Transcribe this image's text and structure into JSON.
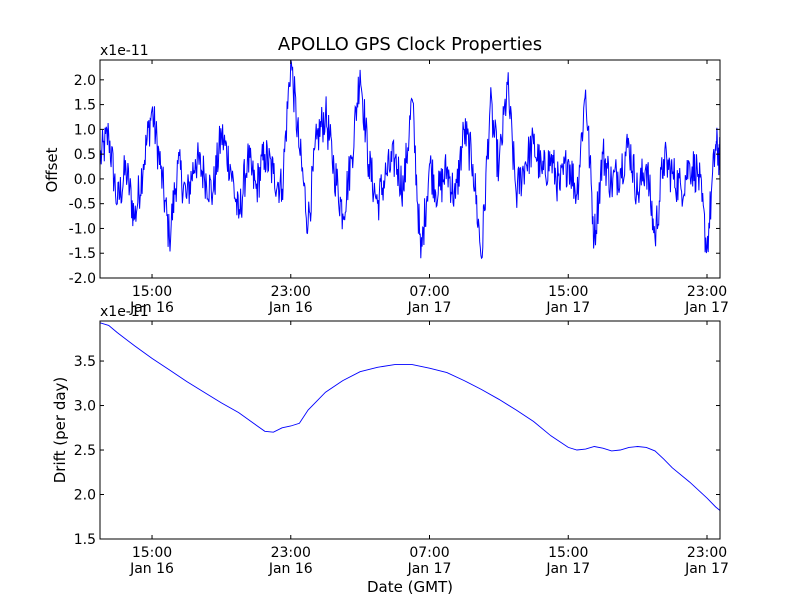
{
  "chart_data": [
    {
      "type": "line",
      "title": "APOLLO GPS Clock Properties",
      "xlabel": "",
      "ylabel": "Offset",
      "y_multiplier": "x1e-11",
      "ylim": [
        -2.0,
        2.4
      ],
      "xlim": [
        "2014-01-16T12:00",
        "2014-01-17T23:45"
      ],
      "yticks": [
        "-2.0",
        "-1.5",
        "-1.0",
        "-0.5",
        "0.0",
        "0.5",
        "1.0",
        "1.5",
        "2.0"
      ],
      "yticks_values": [
        -2.0,
        -1.5,
        -1.0,
        -0.5,
        0.0,
        0.5,
        1.0,
        1.5,
        2.0
      ],
      "xticks": [
        {
          "time": "15:00",
          "date": "Jan 16",
          "t": "2014-01-16T15:00"
        },
        {
          "time": "23:00",
          "date": "Jan 16",
          "t": "2014-01-16T23:00"
        },
        {
          "time": "07:00",
          "date": "Jan 17",
          "t": "2014-01-17T07:00"
        },
        {
          "time": "15:00",
          "date": "Jan 17",
          "t": "2014-01-17T15:00"
        },
        {
          "time": "23:00",
          "date": "Jan 17",
          "t": "2014-01-17T23:00"
        }
      ],
      "color": "#0000ff",
      "grid": false,
      "series": [
        {
          "name": "",
          "points": [
            [
              "2014-01-16T12:00",
              0.4
            ],
            [
              "2014-01-16T12:30",
              0.9
            ],
            [
              "2014-01-16T13:00",
              -0.5
            ],
            [
              "2014-01-16T13:30",
              0.2
            ],
            [
              "2014-01-16T14:00",
              -0.8
            ],
            [
              "2014-01-16T14:30",
              0.3
            ],
            [
              "2014-01-16T15:00",
              1.4
            ],
            [
              "2014-01-16T15:30",
              0.2
            ],
            [
              "2014-01-16T16:00",
              -1.2
            ],
            [
              "2014-01-16T16:30",
              0.3
            ],
            [
              "2014-01-16T17:00",
              -0.4
            ],
            [
              "2014-01-16T17:30",
              0.4
            ],
            [
              "2014-01-16T18:00",
              0.1
            ],
            [
              "2014-01-16T18:30",
              -0.3
            ],
            [
              "2014-01-16T19:00",
              0.9
            ],
            [
              "2014-01-16T19:30",
              0.3
            ],
            [
              "2014-01-16T20:00",
              -0.8
            ],
            [
              "2014-01-16T20:30",
              0.4
            ],
            [
              "2014-01-16T21:00",
              -0.2
            ],
            [
              "2014-01-16T21:30",
              0.5
            ],
            [
              "2014-01-16T22:00",
              0.1
            ],
            [
              "2014-01-16T22:30",
              -0.2
            ],
            [
              "2014-01-16T23:00",
              2.4
            ],
            [
              "2014-01-16T23:30",
              0.6
            ],
            [
              "2014-01-17T00:00",
              -0.9
            ],
            [
              "2014-01-17T00:30",
              0.8
            ],
            [
              "2014-01-17T01:00",
              1.3
            ],
            [
              "2014-01-17T01:30",
              0.2
            ],
            [
              "2014-01-17T02:00",
              -0.7
            ],
            [
              "2014-01-17T02:30",
              0.4
            ],
            [
              "2014-01-17T03:00",
              2.2
            ],
            [
              "2014-01-17T03:30",
              0.3
            ],
            [
              "2014-01-17T04:00",
              -0.5
            ],
            [
              "2014-01-17T04:30",
              0.1
            ],
            [
              "2014-01-17T05:00",
              0.4
            ],
            [
              "2014-01-17T05:30",
              -0.2
            ],
            [
              "2014-01-17T06:00",
              1.6
            ],
            [
              "2014-01-17T06:30",
              -1.6
            ],
            [
              "2014-01-17T07:00",
              0.3
            ],
            [
              "2014-01-17T07:30",
              -0.3
            ],
            [
              "2014-01-17T08:00",
              0.2
            ],
            [
              "2014-01-17T08:30",
              -0.4
            ],
            [
              "2014-01-17T09:00",
              1.0
            ],
            [
              "2014-01-17T09:30",
              0.3
            ],
            [
              "2014-01-17T10:00",
              -1.6
            ],
            [
              "2014-01-17T10:30",
              1.5
            ],
            [
              "2014-01-17T11:00",
              0.2
            ],
            [
              "2014-01-17T11:30",
              1.9
            ],
            [
              "2014-01-17T12:00",
              -0.3
            ],
            [
              "2014-01-17T12:30",
              0.3
            ],
            [
              "2014-01-17T13:00",
              0.7
            ],
            [
              "2014-01-17T13:30",
              0.1
            ],
            [
              "2014-01-17T14:00",
              0.4
            ],
            [
              "2014-01-17T14:30",
              -0.2
            ],
            [
              "2014-01-17T15:00",
              0.4
            ],
            [
              "2014-01-17T15:30",
              -0.3
            ],
            [
              "2014-01-17T16:00",
              1.8
            ],
            [
              "2014-01-17T16:30",
              -1.2
            ],
            [
              "2014-01-17T17:00",
              0.5
            ],
            [
              "2014-01-17T17:30",
              -0.1
            ],
            [
              "2014-01-17T18:00",
              0.2
            ],
            [
              "2014-01-17T18:30",
              0.7
            ],
            [
              "2014-01-17T19:00",
              -0.3
            ],
            [
              "2014-01-17T19:30",
              0.3
            ],
            [
              "2014-01-17T20:00",
              -1.2
            ],
            [
              "2014-01-17T20:30",
              0.4
            ],
            [
              "2014-01-17T21:00",
              0.1
            ],
            [
              "2014-01-17T21:30",
              -0.2
            ],
            [
              "2014-01-17T22:00",
              0.3
            ],
            [
              "2014-01-17T22:30",
              0.1
            ],
            [
              "2014-01-17T23:00",
              -1.4
            ],
            [
              "2014-01-17T23:30",
              0.7
            ],
            [
              "2014-01-17T23:45",
              0.4
            ]
          ]
        }
      ]
    },
    {
      "type": "line",
      "title": "",
      "xlabel": "Date (GMT)",
      "ylabel": "Drift (per day)",
      "y_multiplier": "x1e-11",
      "ylim": [
        1.5,
        3.95
      ],
      "xlim": [
        "2014-01-16T12:00",
        "2014-01-17T23:45"
      ],
      "yticks": [
        "1.5",
        "2.0",
        "2.5",
        "3.0",
        "3.5"
      ],
      "yticks_values": [
        1.5,
        2.0,
        2.5,
        3.0,
        3.5
      ],
      "xticks": [
        {
          "time": "15:00",
          "date": "Jan 16",
          "t": "2014-01-16T15:00"
        },
        {
          "time": "23:00",
          "date": "Jan 16",
          "t": "2014-01-16T23:00"
        },
        {
          "time": "07:00",
          "date": "Jan 17",
          "t": "2014-01-17T07:00"
        },
        {
          "time": "15:00",
          "date": "Jan 17",
          "t": "2014-01-17T15:00"
        },
        {
          "time": "23:00",
          "date": "Jan 17",
          "t": "2014-01-17T23:00"
        }
      ],
      "color": "#0000ff",
      "grid": false,
      "series": [
        {
          "name": "",
          "points": [
            [
              "2014-01-16T12:00",
              3.93
            ],
            [
              "2014-01-16T12:30",
              3.9
            ],
            [
              "2014-01-16T13:00",
              3.82
            ],
            [
              "2014-01-16T14:00",
              3.67
            ],
            [
              "2014-01-16T15:00",
              3.53
            ],
            [
              "2014-01-16T16:00",
              3.4
            ],
            [
              "2014-01-16T17:00",
              3.27
            ],
            [
              "2014-01-16T18:00",
              3.15
            ],
            [
              "2014-01-16T19:00",
              3.03
            ],
            [
              "2014-01-16T20:00",
              2.92
            ],
            [
              "2014-01-16T21:00",
              2.78
            ],
            [
              "2014-01-16T21:30",
              2.71
            ],
            [
              "2014-01-16T22:00",
              2.7
            ],
            [
              "2014-01-16T22:30",
              2.75
            ],
            [
              "2014-01-16T23:00",
              2.77
            ],
            [
              "2014-01-16T23:30",
              2.8
            ],
            [
              "2014-01-17T00:00",
              2.95
            ],
            [
              "2014-01-17T01:00",
              3.15
            ],
            [
              "2014-01-17T02:00",
              3.28
            ],
            [
              "2014-01-17T03:00",
              3.38
            ],
            [
              "2014-01-17T04:00",
              3.43
            ],
            [
              "2014-01-17T05:00",
              3.46
            ],
            [
              "2014-01-17T06:00",
              3.46
            ],
            [
              "2014-01-17T07:00",
              3.42
            ],
            [
              "2014-01-17T08:00",
              3.37
            ],
            [
              "2014-01-17T09:00",
              3.28
            ],
            [
              "2014-01-17T10:00",
              3.18
            ],
            [
              "2014-01-17T11:00",
              3.07
            ],
            [
              "2014-01-17T12:00",
              2.95
            ],
            [
              "2014-01-17T13:00",
              2.82
            ],
            [
              "2014-01-17T14:00",
              2.66
            ],
            [
              "2014-01-17T15:00",
              2.53
            ],
            [
              "2014-01-17T15:30",
              2.5
            ],
            [
              "2014-01-17T16:00",
              2.51
            ],
            [
              "2014-01-17T16:30",
              2.54
            ],
            [
              "2014-01-17T17:00",
              2.52
            ],
            [
              "2014-01-17T17:30",
              2.49
            ],
            [
              "2014-01-17T18:00",
              2.5
            ],
            [
              "2014-01-17T18:30",
              2.53
            ],
            [
              "2014-01-17T19:00",
              2.54
            ],
            [
              "2014-01-17T19:30",
              2.53
            ],
            [
              "2014-01-17T20:00",
              2.49
            ],
            [
              "2014-01-17T20:30",
              2.4
            ],
            [
              "2014-01-17T21:00",
              2.3
            ],
            [
              "2014-01-17T22:00",
              2.14
            ],
            [
              "2014-01-17T23:00",
              1.96
            ],
            [
              "2014-01-17T23:30",
              1.86
            ],
            [
              "2014-01-17T23:45",
              1.82
            ]
          ]
        }
      ]
    }
  ]
}
